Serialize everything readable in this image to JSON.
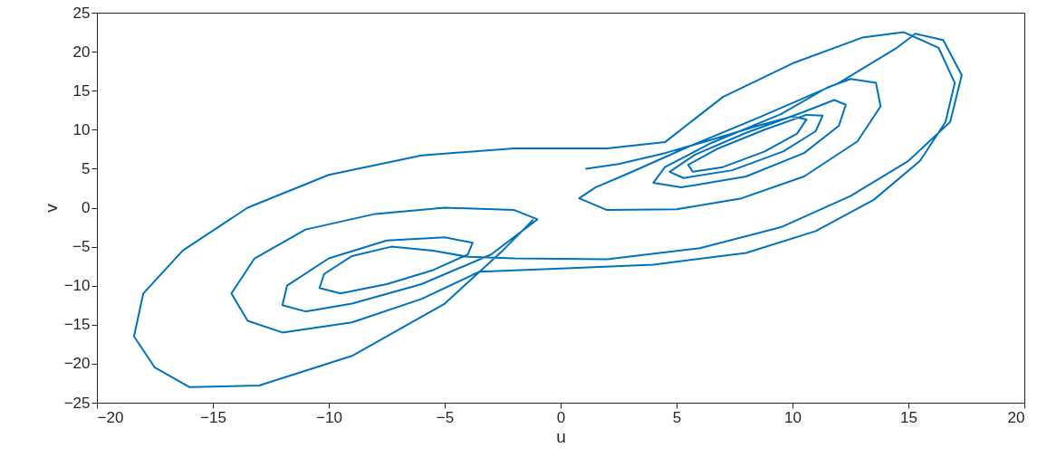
{
  "chart_data": {
    "type": "line",
    "xlabel": "u",
    "ylabel": "v",
    "xlim": [
      -20,
      20
    ],
    "ylim": [
      -25,
      25
    ],
    "xticks": [
      -20,
      -15,
      -10,
      -5,
      0,
      5,
      10,
      15,
      20
    ],
    "yticks": [
      -25,
      -20,
      -15,
      -10,
      -5,
      0,
      5,
      10,
      15,
      20,
      25
    ],
    "grid": false,
    "series": [
      {
        "color": "#0072bd",
        "x": [
          1.1,
          2.5,
          4.5,
          6.5,
          8.5,
          10,
          10.6,
          10.2,
          8.8,
          7,
          5.7,
          5.5,
          6.8,
          8.8,
          10.6,
          11.3,
          11,
          9.6,
          7.4,
          5.3,
          4.7,
          5.8,
          8,
          10.5,
          11.8,
          12.3,
          12,
          10.5,
          8,
          5.2,
          4,
          4.5,
          6.5,
          9.5,
          11.5,
          12.5,
          13.6,
          13.8,
          12.8,
          10.5,
          7.8,
          5,
          2,
          0.8,
          1.5,
          3,
          5.5,
          8.5,
          12,
          14.5,
          15.3,
          16.5,
          17.3,
          16.8,
          15,
          12.5,
          9.5,
          6,
          2,
          -2,
          -4,
          -5.5,
          -7.3,
          -9,
          -10.2,
          -10.4,
          -9.5,
          -7.5,
          -5.5,
          -4,
          -3.8,
          -5,
          -7.5,
          -10,
          -11.8,
          -12,
          -11,
          -9,
          -6,
          -3,
          -1,
          -2,
          -5,
          -8,
          -11,
          -13.2,
          -14.2,
          -13.5,
          -12,
          -9,
          -6,
          -3.5,
          0,
          4,
          8,
          11,
          13.5,
          15.5,
          16.6,
          17,
          16.3,
          14.8,
          13,
          10,
          7,
          4.5,
          2,
          -2,
          -6,
          -10,
          -13.5,
          -16.3,
          -18,
          -18.4,
          -17.5,
          -16,
          -13,
          -9,
          -5,
          -2.5,
          -1.2
        ],
        "values": [
          5,
          5.6,
          7,
          8.7,
          10.5,
          11.7,
          11.3,
          9.5,
          7.2,
          5.2,
          4.6,
          5.5,
          7.6,
          10,
          11.9,
          11.8,
          9.8,
          7.2,
          4.8,
          3.8,
          4.6,
          6.8,
          9.6,
          12.3,
          13.8,
          13.2,
          10.5,
          7,
          4,
          2.6,
          3.2,
          5.2,
          8.3,
          12,
          15.4,
          16.5,
          16,
          13,
          8.5,
          4,
          1.2,
          -0.2,
          -0.3,
          1.2,
          2.6,
          4.5,
          7.8,
          11.5,
          16,
          20.5,
          22.3,
          21.5,
          17,
          11,
          6,
          1.5,
          -2.5,
          -5.2,
          -6.6,
          -6.5,
          -6.3,
          -5.5,
          -5,
          -6.2,
          -8.5,
          -10.3,
          -11,
          -9.8,
          -8,
          -6,
          -4.5,
          -3.8,
          -4.2,
          -6.5,
          -10,
          -12.5,
          -13.3,
          -12.3,
          -9.8,
          -6,
          -1.5,
          -0.3,
          0,
          -0.8,
          -2.8,
          -6.5,
          -11,
          -14.5,
          -16,
          -14.7,
          -11.7,
          -8.2,
          -7.8,
          -7.3,
          -5.8,
          -3,
          1,
          6,
          11,
          16,
          20.5,
          22.5,
          21.8,
          18.5,
          14.2,
          8.4,
          7.6,
          7.6,
          6.7,
          4.2,
          0,
          -5.5,
          -11,
          -16.5,
          -20.5,
          -23,
          -22.8,
          -19,
          -12.3,
          -5.5,
          -1.6
        ]
      }
    ]
  }
}
